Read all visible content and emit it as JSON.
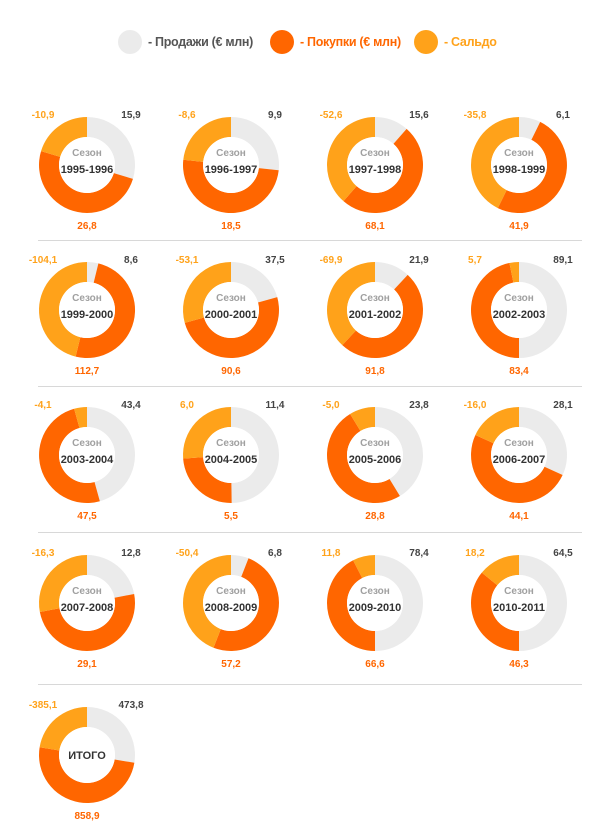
{
  "legend": {
    "items": [
      {
        "label": "- Продажи (€ млн)",
        "color": "#ebebeb",
        "text_color": "#555555"
      },
      {
        "label": "- Покупки (€ млн)",
        "color": "#ff6600",
        "text_color": "#ff6600"
      },
      {
        "label": "- Сальдо",
        "color": "#ffa21a",
        "text_color": "#ffa21a"
      }
    ]
  },
  "colors": {
    "sales": "#ebebeb",
    "purchases": "#ff6600",
    "balance": "#ffa21a",
    "text_dark": "#333333"
  },
  "chart_data": {
    "type": "donut",
    "series_names": [
      "Продажи (€ млн)",
      "Покупки (€ млн)",
      "Сальдо"
    ],
    "season_prefix": "Сезон",
    "seasons": [
      {
        "label": "1995-1996",
        "sales": "15,9",
        "purchases": "26,8",
        "balance": "-10,9"
      },
      {
        "label": "1996-1997",
        "sales": "9,9",
        "purchases": "18,5",
        "balance": "-8,6"
      },
      {
        "label": "1997-1998",
        "sales": "15,6",
        "purchases": "68,1",
        "balance": "-52,6"
      },
      {
        "label": "1998-1999",
        "sales": "6,1",
        "purchases": "41,9",
        "balance": "-35,8"
      },
      {
        "label": "1999-2000",
        "sales": "8,6",
        "purchases": "112,7",
        "balance": "-104,1"
      },
      {
        "label": "2000-2001",
        "sales": "37,5",
        "purchases": "90,6",
        "balance": "-53,1"
      },
      {
        "label": "2001-2002",
        "sales": "21,9",
        "purchases": "91,8",
        "balance": "-69,9"
      },
      {
        "label": "2002-2003",
        "sales": "89,1",
        "purchases": "83,4",
        "balance": "5,7"
      },
      {
        "label": "2003-2004",
        "sales": "43,4",
        "purchases": "47,5",
        "balance": "-4,1"
      },
      {
        "label": "2004-2005",
        "sales": "11,4",
        "purchases": "5,5",
        "balance": "6,0"
      },
      {
        "label": "2005-2006",
        "sales": "23,8",
        "purchases": "28,8",
        "balance": "-5,0"
      },
      {
        "label": "2006-2007",
        "sales": "28,1",
        "purchases": "44,1",
        "balance": "-16,0"
      },
      {
        "label": "2007-2008",
        "sales": "12,8",
        "purchases": "29,1",
        "balance": "-16,3"
      },
      {
        "label": "2008-2009",
        "sales": "6,8",
        "purchases": "57,2",
        "balance": "-50,4"
      },
      {
        "label": "2009-2010",
        "sales": "78,4",
        "purchases": "66,6",
        "balance": "11,8"
      },
      {
        "label": "2010-2011",
        "sales": "64,5",
        "purchases": "46,3",
        "balance": "18,2"
      }
    ],
    "total": {
      "label": "ИТОГО",
      "sales": "473,8",
      "purchases": "858,9",
      "balance": "-385,1"
    }
  }
}
